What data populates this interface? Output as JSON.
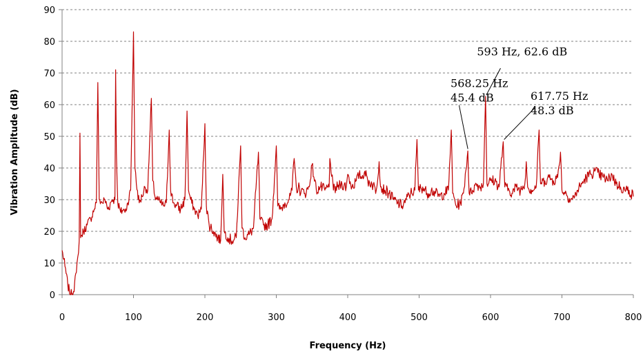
{
  "chart_data": {
    "type": "line",
    "title": "",
    "xlabel": "Frequency (Hz)",
    "ylabel": "Vibration Amplitude (dB)",
    "xlim": [
      0,
      800
    ],
    "ylim": [
      0,
      90
    ],
    "x_ticks": [
      0,
      100,
      200,
      300,
      400,
      500,
      600,
      700,
      800
    ],
    "y_ticks": [
      0,
      10,
      20,
      30,
      40,
      50,
      60,
      70,
      80,
      90
    ],
    "grid": "horizontal dashed",
    "line_color": "#c00000",
    "series": [
      {
        "points": [
          [
            0,
            14
          ],
          [
            4,
            9
          ],
          [
            8,
            3
          ],
          [
            12,
            0
          ],
          [
            16,
            1
          ],
          [
            20,
            7
          ],
          [
            22,
            12
          ],
          [
            24,
            17
          ],
          [
            25,
            51
          ],
          [
            26,
            18
          ],
          [
            30,
            20
          ],
          [
            35,
            22
          ],
          [
            40,
            24
          ],
          [
            45,
            27
          ],
          [
            48,
            29
          ],
          [
            50,
            67
          ],
          [
            52,
            30
          ],
          [
            56,
            29
          ],
          [
            60,
            30
          ],
          [
            64,
            27
          ],
          [
            70,
            30
          ],
          [
            74,
            30
          ],
          [
            75,
            71
          ],
          [
            76,
            45
          ],
          [
            78,
            29
          ],
          [
            82,
            26
          ],
          [
            86,
            27
          ],
          [
            88,
            26
          ],
          [
            92,
            29
          ],
          [
            96,
            33
          ],
          [
            100,
            83
          ],
          [
            102,
            40
          ],
          [
            104,
            35
          ],
          [
            108,
            29
          ],
          [
            112,
            31
          ],
          [
            116,
            34
          ],
          [
            120,
            33
          ],
          [
            125,
            62
          ],
          [
            127,
            36
          ],
          [
            130,
            31
          ],
          [
            134,
            30
          ],
          [
            138,
            29
          ],
          [
            142,
            28
          ],
          [
            146,
            29
          ],
          [
            150,
            52
          ],
          [
            152,
            33
          ],
          [
            156,
            29
          ],
          [
            160,
            28
          ],
          [
            166,
            27
          ],
          [
            172,
            30
          ],
          [
            175,
            58
          ],
          [
            177,
            33
          ],
          [
            180,
            30
          ],
          [
            185,
            27
          ],
          [
            190,
            25
          ],
          [
            195,
            27
          ],
          [
            200,
            54
          ],
          [
            202,
            28
          ],
          [
            206,
            22
          ],
          [
            212,
            20
          ],
          [
            218,
            18
          ],
          [
            222,
            17
          ],
          [
            225,
            38
          ],
          [
            227,
            20
          ],
          [
            232,
            18
          ],
          [
            238,
            17
          ],
          [
            244,
            18
          ],
          [
            250,
            47
          ],
          [
            252,
            21
          ],
          [
            256,
            18
          ],
          [
            262,
            19
          ],
          [
            268,
            21
          ],
          [
            275,
            45
          ],
          [
            277,
            24
          ],
          [
            282,
            22
          ],
          [
            288,
            22
          ],
          [
            294,
            24
          ],
          [
            300,
            47
          ],
          [
            302,
            28
          ],
          [
            306,
            27
          ],
          [
            312,
            29
          ],
          [
            318,
            30
          ],
          [
            322,
            33
          ],
          [
            325,
            43
          ],
          [
            328,
            34
          ],
          [
            335,
            33
          ],
          [
            340,
            32
          ],
          [
            346,
            34
          ],
          [
            350,
            41
          ],
          [
            356,
            33
          ],
          [
            362,
            34
          ],
          [
            368,
            33
          ],
          [
            374,
            34
          ],
          [
            375,
            43
          ],
          [
            380,
            33
          ],
          [
            386,
            34
          ],
          [
            392,
            35
          ],
          [
            398,
            34
          ],
          [
            400,
            38
          ],
          [
            406,
            34
          ],
          [
            412,
            36
          ],
          [
            416,
            38
          ],
          [
            420,
            37
          ],
          [
            424,
            39
          ],
          [
            428,
            36
          ],
          [
            434,
            35
          ],
          [
            440,
            33
          ],
          [
            444,
            42
          ],
          [
            446,
            34
          ],
          [
            452,
            33
          ],
          [
            458,
            32
          ],
          [
            464,
            30
          ],
          [
            470,
            29
          ],
          [
            476,
            28
          ],
          [
            482,
            30
          ],
          [
            488,
            32
          ],
          [
            494,
            33
          ],
          [
            497,
            49
          ],
          [
            499,
            33
          ],
          [
            505,
            34
          ],
          [
            511,
            32
          ],
          [
            517,
            33
          ],
          [
            523,
            32
          ],
          [
            529,
            31
          ],
          [
            535,
            32
          ],
          [
            541,
            33
          ],
          [
            545,
            52
          ],
          [
            547,
            32
          ],
          [
            552,
            28
          ],
          [
            558,
            29
          ],
          [
            562,
            32
          ],
          [
            568.25,
            45.4
          ],
          [
            570,
            32
          ],
          [
            575,
            33
          ],
          [
            580,
            35
          ],
          [
            586,
            34
          ],
          [
            590,
            35
          ],
          [
            593,
            62.6
          ],
          [
            595,
            35
          ],
          [
            600,
            36
          ],
          [
            606,
            36
          ],
          [
            612,
            34
          ],
          [
            617.75,
            48.3
          ],
          [
            620,
            34
          ],
          [
            626,
            33
          ],
          [
            630,
            32
          ],
          [
            636,
            34
          ],
          [
            642,
            33
          ],
          [
            648,
            35
          ],
          [
            650,
            42
          ],
          [
            652,
            34
          ],
          [
            658,
            33
          ],
          [
            664,
            34
          ],
          [
            668,
            52
          ],
          [
            670,
            35
          ],
          [
            676,
            36
          ],
          [
            682,
            37
          ],
          [
            688,
            36
          ],
          [
            694,
            37
          ],
          [
            698,
            45
          ],
          [
            700,
            33
          ],
          [
            706,
            32
          ],
          [
            712,
            30
          ],
          [
            718,
            31
          ],
          [
            722,
            33
          ],
          [
            728,
            35
          ],
          [
            734,
            37
          ],
          [
            740,
            38
          ],
          [
            746,
            39
          ],
          [
            752,
            38
          ],
          [
            758,
            37
          ],
          [
            764,
            36
          ],
          [
            770,
            38
          ],
          [
            776,
            35
          ],
          [
            782,
            34
          ],
          [
            788,
            33
          ],
          [
            794,
            33
          ],
          [
            800,
            31
          ]
        ]
      }
    ],
    "annotations": [
      {
        "lines": [
          "593 Hz, 62.6 dB"
        ],
        "anchor": [
          593,
          62.6
        ],
        "text_at": [
          581,
          75.5
        ],
        "leader_from": [
          614,
          71.5
        ],
        "leader_to": [
          594,
          63
        ]
      },
      {
        "lines": [
          "568.25 Hz",
          "45.4 dB"
        ],
        "anchor": [
          568.25,
          45.4
        ],
        "text_at": [
          544,
          65.5
        ],
        "leader_from": [
          556,
          59.8
        ],
        "leader_to": [
          568.25,
          46
        ]
      },
      {
        "lines": [
          "617.75 Hz",
          "48.3 dB"
        ],
        "anchor": [
          617.75,
          48.3
        ],
        "text_at": [
          656,
          61.5
        ],
        "leader_from": [
          662,
          59
        ],
        "leader_to": [
          619,
          49
        ]
      }
    ]
  }
}
